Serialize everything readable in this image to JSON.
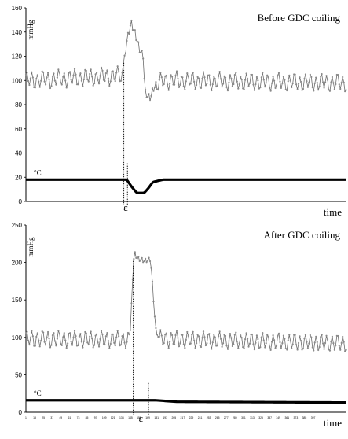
{
  "chart_data": [
    {
      "type": "line",
      "title": "Before GDC coiling",
      "ylabel": "mmHg",
      "xlabel": "time",
      "ylim": [
        0,
        160
      ],
      "yticks": [
        0,
        20,
        40,
        60,
        80,
        100,
        120,
        140,
        160
      ],
      "annotations": [
        "°C",
        "ε"
      ],
      "series": [
        {
          "values_pressure": "oscillating ~92-108 baseline, surge to ~148 then drop to ~85",
          "pressure_keypoints": [
            [
              1,
              100
            ],
            [
              134,
              104
            ],
            [
              140,
              132
            ],
            [
              146,
              148
            ],
            [
              152,
              138
            ],
            [
              158,
              125
            ],
            [
              163,
              120
            ],
            [
              165,
              90
            ],
            [
              172,
              85
            ],
            [
              178,
              95
            ],
            [
              190,
              100
            ],
            [
              443,
              98
            ]
          ]
        },
        {
          "temperature_keypoints": [
            [
              1,
              18
            ],
            [
              140,
              18
            ],
            [
              147,
              12
            ],
            [
              154,
              7
            ],
            [
              164,
              7
            ],
            [
              170,
              11
            ],
            [
              176,
              16
            ],
            [
              190,
              18
            ],
            [
              443,
              18
            ]
          ]
        }
      ],
      "markers": [
        136,
        141
      ]
    },
    {
      "type": "line",
      "title": "After GDC coiling",
      "ylabel": "mmHg",
      "xlabel": "time",
      "ylim": [
        0,
        250
      ],
      "yticks": [
        0,
        50,
        100,
        150,
        200,
        250
      ],
      "xticks": [
        "1",
        "13",
        "25",
        "37",
        "49",
        "61",
        "73",
        "85",
        "97",
        "109",
        "121",
        "133",
        "145",
        "157",
        "169",
        "181",
        "193",
        "205",
        "217",
        "229",
        "241",
        "253",
        "265",
        "277",
        "289",
        "301",
        "313",
        "325",
        "337",
        "349",
        "361",
        "373",
        "385",
        "397"
      ],
      "annotations": [
        "°C",
        "ε"
      ],
      "series": [
        {
          "pressure_keypoints": [
            [
              1,
              98
            ],
            [
              144,
              97
            ],
            [
              147,
              150
            ],
            [
              149,
              200
            ],
            [
              151,
              212
            ],
            [
              155,
              205
            ],
            [
              165,
              202
            ],
            [
              173,
              204
            ],
            [
              177,
              150
            ],
            [
              180,
              110
            ],
            [
              185,
              98
            ],
            [
              443,
              92
            ]
          ]
        },
        {
          "temperature_keypoints": [
            [
              1,
              16
            ],
            [
              180,
              16
            ],
            [
              210,
              14
            ],
            [
              443,
              13
            ]
          ]
        }
      ],
      "markers": [
        149,
        170
      ]
    }
  ]
}
